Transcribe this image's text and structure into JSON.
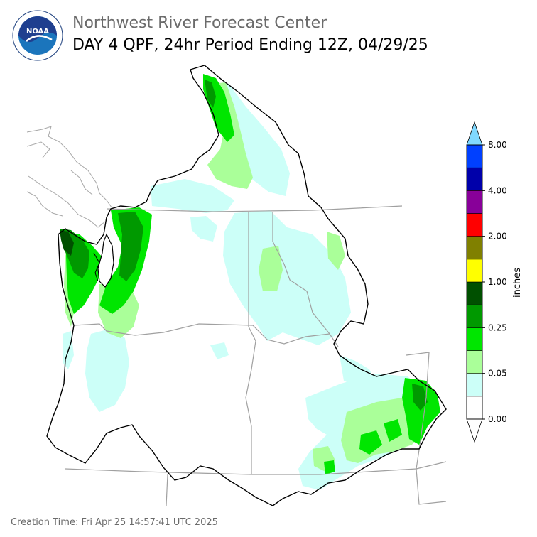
{
  "header": {
    "org_title": "Northwest River Forecast Center",
    "product_title": "DAY 4 QPF, 24hr Period Ending 12Z, 04/29/25"
  },
  "logo": {
    "icon": "noaa-logo-icon",
    "text": "NOAA"
  },
  "legend": {
    "units": "inches",
    "tick_labels": [
      "0.00",
      "0.05",
      "0.25",
      "1.00",
      "2.00",
      "4.00",
      "8.00"
    ],
    "bins": [
      {
        "color": "#ffffff"
      },
      {
        "color": "#ccfff8"
      },
      {
        "color": "#aaff99"
      },
      {
        "color": "#00e600"
      },
      {
        "color": "#009900"
      },
      {
        "color": "#005000"
      },
      {
        "color": "#ffff00"
      },
      {
        "color": "#808000"
      },
      {
        "color": "#ff0000"
      },
      {
        "color": "#880099"
      },
      {
        "color": "#0000aa"
      },
      {
        "color": "#0040ff"
      },
      {
        "color": "#80d8ff"
      }
    ]
  },
  "footer": {
    "creation_time": "Creation Time: Fri Apr 25 14:57:41 UTC 2025"
  }
}
